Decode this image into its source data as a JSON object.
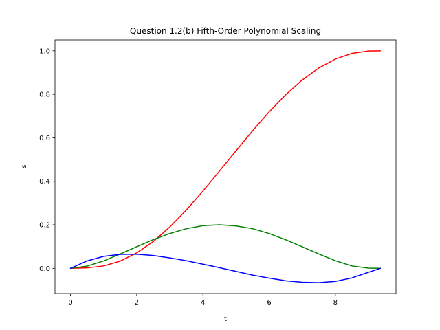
{
  "chart_data": {
    "type": "line",
    "title": "Question 1.2(b) Fifth-Order Polynomial Scaling",
    "xlabel": "t",
    "ylabel": "s",
    "xlim": [
      -0.468,
      9.83
    ],
    "ylim": [
      -0.116,
      1.05
    ],
    "xticks": [
      0,
      2,
      4,
      6,
      8
    ],
    "yticks": [
      0.0,
      0.2,
      0.4,
      0.6,
      0.8,
      1.0
    ],
    "xtick_labels": [
      "0",
      "2",
      "4",
      "6",
      "8"
    ],
    "ytick_labels": [
      "0.0",
      "0.2",
      "0.4",
      "0.6",
      "0.8",
      "1.0"
    ],
    "grid": false,
    "legend": "none",
    "series": [
      {
        "color": "#ff0000",
        "x": [
          0,
          0.5,
          1,
          1.5,
          2,
          2.5,
          3,
          3.5,
          4,
          4.5,
          5,
          5.5,
          6,
          6.5,
          7,
          7.5,
          8,
          8.5,
          9,
          9.36
        ],
        "values": [
          0.0,
          0.002,
          0.011,
          0.033,
          0.071,
          0.123,
          0.19,
          0.268,
          0.355,
          0.447,
          0.54,
          0.632,
          0.719,
          0.798,
          0.866,
          0.921,
          0.962,
          0.988,
          0.999,
          1.0
        ]
      },
      {
        "color": "#008000",
        "x": [
          0,
          0.5,
          1,
          1.5,
          2,
          2.5,
          3,
          3.5,
          4,
          4.5,
          5,
          5.5,
          6,
          6.5,
          7,
          7.5,
          8,
          8.5,
          9,
          9.36
        ],
        "values": [
          0.0,
          0.01,
          0.034,
          0.066,
          0.099,
          0.132,
          0.16,
          0.182,
          0.196,
          0.2,
          0.195,
          0.182,
          0.16,
          0.131,
          0.099,
          0.066,
          0.035,
          0.011,
          0.001,
          0.0
        ]
      },
      {
        "color": "#0000ff",
        "x": [
          0,
          0.5,
          1,
          1.5,
          2,
          2.5,
          3,
          3.5,
          4,
          4.5,
          5,
          5.5,
          6,
          6.5,
          7,
          7.5,
          8,
          8.5,
          9,
          9.36
        ],
        "values": [
          0.0,
          0.034,
          0.055,
          0.064,
          0.065,
          0.059,
          0.048,
          0.035,
          0.019,
          0.003,
          -0.014,
          -0.031,
          -0.045,
          -0.057,
          -0.064,
          -0.066,
          -0.06,
          -0.044,
          -0.018,
          0.0
        ]
      }
    ]
  }
}
